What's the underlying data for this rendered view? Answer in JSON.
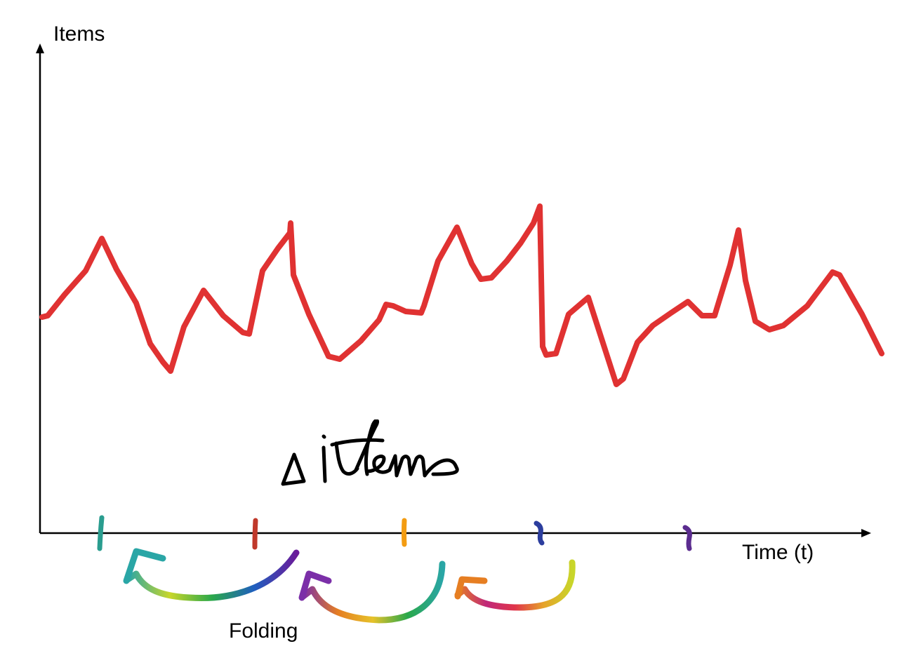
{
  "diagram": {
    "y_axis_label": "Items",
    "x_axis_label": "Time (t)",
    "fold_label": "Folding",
    "handwritten_note": "Δ items",
    "colors": {
      "axis": "#000000",
      "signal": "#e03232",
      "ink": "#000000"
    },
    "tick_marks": [
      {
        "id": "tick-1",
        "color": "#2a9d8f"
      },
      {
        "id": "tick-2",
        "color": "#c0392b"
      },
      {
        "id": "tick-3",
        "color": "#f39c12"
      },
      {
        "id": "tick-4",
        "color": "#2c3e9e"
      },
      {
        "id": "tick-5",
        "color": "#5b2c8f"
      }
    ],
    "fold_arrows": [
      {
        "id": "fold-arrow-1",
        "gradient": [
          "#6a1b9a",
          "#1f5fbf",
          "#2aa84a",
          "#c8d62a",
          "#2aa6a6"
        ]
      },
      {
        "id": "fold-arrow-2",
        "gradient": [
          "#2aa6a6",
          "#2aa84a",
          "#e6c22a",
          "#e67e22",
          "#7b2fa8"
        ]
      },
      {
        "id": "fold-arrow-3",
        "gradient": [
          "#c8d62a",
          "#e6a32a",
          "#e0344a",
          "#c0287a",
          "#e67e22"
        ]
      }
    ]
  }
}
